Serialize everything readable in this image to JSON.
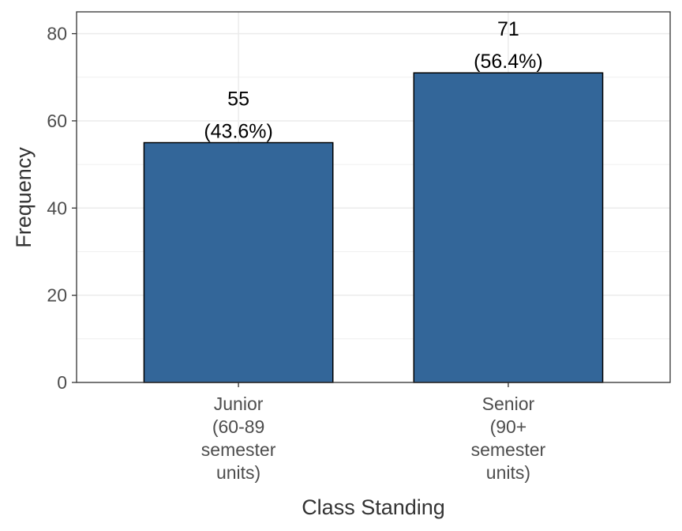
{
  "chart_data": {
    "type": "bar",
    "categories": [
      [
        "Junior",
        "(60-89",
        "semester",
        "units)"
      ],
      [
        "Senior",
        "(90+",
        "semester",
        "units)"
      ]
    ],
    "values": [
      55,
      71
    ],
    "value_labels": [
      "55",
      "71"
    ],
    "percent_labels": [
      "(43.6%)",
      "(56.4%)"
    ],
    "xlabel": "Class Standing",
    "ylabel": "Frequency",
    "ylim": [
      0,
      85
    ],
    "yticks": [
      0,
      20,
      40,
      60,
      80
    ],
    "ytick_labels": [
      "0",
      "20",
      "40",
      "60",
      "80"
    ],
    "grid": true,
    "bar_color": "#336699",
    "bar_edge_color": "#000000",
    "grid_color": "#ebebeb"
  }
}
